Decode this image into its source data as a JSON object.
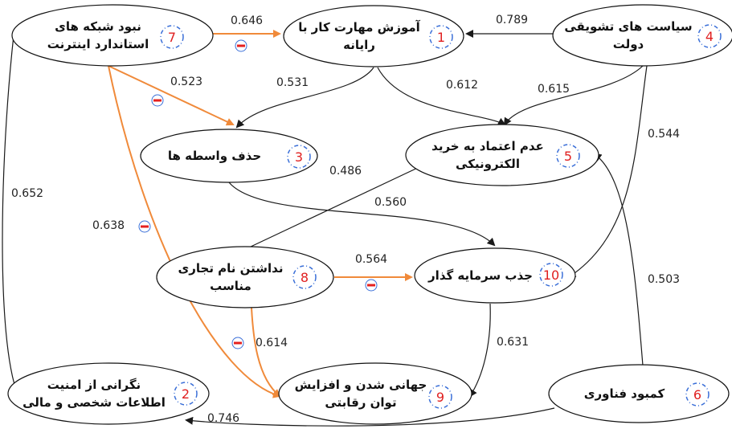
{
  "nodes": [
    {
      "id": 1,
      "label_lines": [
        "آموزش مهارت کار با",
        "رایانه"
      ],
      "badge": "1"
    },
    {
      "id": 2,
      "label_lines": [
        "نگرانی از امنیت",
        "اطلاعات شخصی و مالی"
      ],
      "badge": "2"
    },
    {
      "id": 3,
      "label_lines": [
        "حذف واسطه ها"
      ],
      "badge": "3"
    },
    {
      "id": 4,
      "label_lines": [
        "سیاست های تشویقی",
        "دولت"
      ],
      "badge": "4"
    },
    {
      "id": 5,
      "label_lines": [
        "عدم اعتماد به خرید",
        "الکترونیکی"
      ],
      "badge": "5"
    },
    {
      "id": 6,
      "label_lines": [
        "کمبود فناوری"
      ],
      "badge": "6"
    },
    {
      "id": 7,
      "label_lines": [
        "نبود شبکه های",
        "استاندارد اینترنت"
      ],
      "badge": "7"
    },
    {
      "id": 8,
      "label_lines": [
        "نداشتن نام تجاری",
        "مناسب"
      ],
      "badge": "8"
    },
    {
      "id": 9,
      "label_lines": [
        "جهانی شدن و افزایش",
        "توان رقابتی"
      ],
      "badge": "9"
    },
    {
      "id": 10,
      "label_lines": [
        "جذب سرمایه گذار"
      ],
      "badge": "10"
    }
  ],
  "edges": [
    {
      "from": 7,
      "to": 1,
      "weight": "0.646",
      "negative": true
    },
    {
      "from": 4,
      "to": 1,
      "weight": "0.789",
      "negative": false
    },
    {
      "from": 7,
      "to": 3,
      "weight": "0.523",
      "negative": true
    },
    {
      "from": 1,
      "to": 3,
      "weight": "0.531",
      "negative": false
    },
    {
      "from": 1,
      "to": 5,
      "weight": "0.612",
      "negative": false
    },
    {
      "from": 4,
      "to": 5,
      "weight": "0.615",
      "negative": false
    },
    {
      "from": 4,
      "to": 10,
      "weight": "0.544",
      "negative": false
    },
    {
      "from": 3,
      "to": 10,
      "weight": "0.560",
      "negative": false
    },
    {
      "from": 8,
      "to": 5,
      "weight": "0.486",
      "negative": false
    },
    {
      "from": 7,
      "to": 2,
      "weight": "0.652",
      "negative": false
    },
    {
      "from": 7,
      "to": 9,
      "weight": "0.638",
      "negative": true
    },
    {
      "from": 8,
      "to": 10,
      "weight": "0.564",
      "negative": true
    },
    {
      "from": 8,
      "to": 9,
      "weight": "0.614",
      "negative": true
    },
    {
      "from": 10,
      "to": 9,
      "weight": "0.631",
      "negative": false
    },
    {
      "from": 6,
      "to": 5,
      "weight": "0.503",
      "negative": false
    },
    {
      "from": 6,
      "to": 2,
      "weight": "0.746",
      "negative": false
    }
  ],
  "colors": {
    "positive_edge": "#1a1a1a",
    "negative_edge": "#f08a3a",
    "node_border": "#111111",
    "badge_ring": "#3a6fd8",
    "badge_text": "#e02020",
    "minus_fill": "#e5201f"
  }
}
